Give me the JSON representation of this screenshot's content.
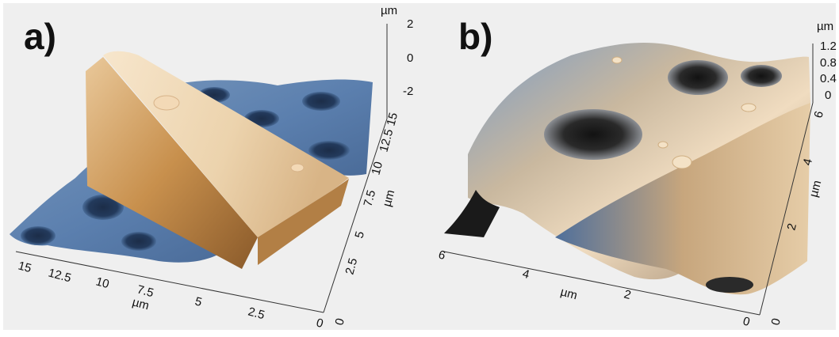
{
  "panels": [
    {
      "label": "a)",
      "z_unit": "µm",
      "z_ticks": [
        "2",
        "0",
        "-2"
      ],
      "y_ticks": [
        "15",
        "12.5",
        "10",
        "7.5",
        "5",
        "2.5",
        "0"
      ],
      "y_unit": "µm",
      "x_ticks": [
        "15",
        "12.5",
        "10",
        "7.5",
        "5",
        "2.5",
        "0"
      ],
      "x_unit": "µm"
    },
    {
      "label": "b)",
      "z_unit": "µm",
      "z_ticks": [
        "1.2",
        "0.8",
        "0.4",
        "0"
      ],
      "y_ticks": [
        "6",
        "4",
        "2",
        "0"
      ],
      "y_unit": "µm",
      "x_ticks": [
        "6",
        "4",
        "2",
        "0"
      ],
      "x_unit": "µm"
    }
  ],
  "colors": {
    "background": "#ffffff",
    "frame": "#efefef",
    "tan_light": "#f1d9b4",
    "tan_dark": "#b97a3a",
    "blue_light": "#9fb8d2",
    "blue_dark": "#2a4a78",
    "shadow": "#1b1b1b"
  }
}
